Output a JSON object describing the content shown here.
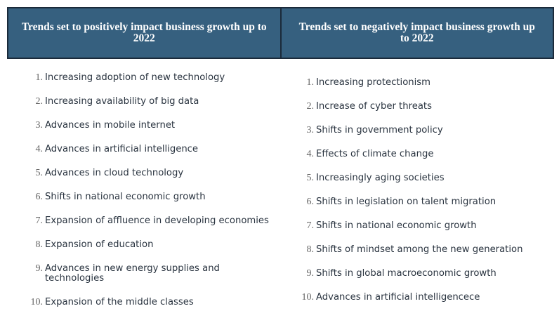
{
  "headers": {
    "positive": "Trends set to positively impact business growth up to 2022",
    "negative": "Trends set to negatively impact business growth up to 2022"
  },
  "positive_trends": [
    {
      "num": "1.",
      "text": "Increasing adoption of new technology"
    },
    {
      "num": "2.",
      "text": "Increasing availability of big data"
    },
    {
      "num": "3.",
      "text": "Advances in mobile internet"
    },
    {
      "num": "4.",
      "text": "Advances in artificial intelligence"
    },
    {
      "num": "5.",
      "text": "Advances in cloud technology"
    },
    {
      "num": "6.",
      "text": "Shifts in national economic growth"
    },
    {
      "num": "7.",
      "text": "Expansion of affluence in developing economies"
    },
    {
      "num": "8.",
      "text": "Expansion of education"
    },
    {
      "num": "9.",
      "text": "Advances in new energy supplies and technologies"
    },
    {
      "num": "10.",
      "text": "Expansion of the middle classes"
    }
  ],
  "negative_trends": [
    {
      "num": "1.",
      "text": "Increasing protectionism"
    },
    {
      "num": "2.",
      "text": "Increase of cyber threats"
    },
    {
      "num": "3.",
      "text": "Shifts in government policy"
    },
    {
      "num": "4.",
      "text": "Effects of climate change"
    },
    {
      "num": "5.",
      "text": "Increasingly aging societies"
    },
    {
      "num": "6.",
      "text": "Shifts in legislation on talent migration"
    },
    {
      "num": "7.",
      "text": "Shifts in national economic growth"
    },
    {
      "num": "8.",
      "text": "Shifts of mindset among the new generation"
    },
    {
      "num": "9.",
      "text": "Shifts in global macroeconomic growth"
    },
    {
      "num": "10.",
      "text": "Advances in artificial intelligencece"
    }
  ]
}
